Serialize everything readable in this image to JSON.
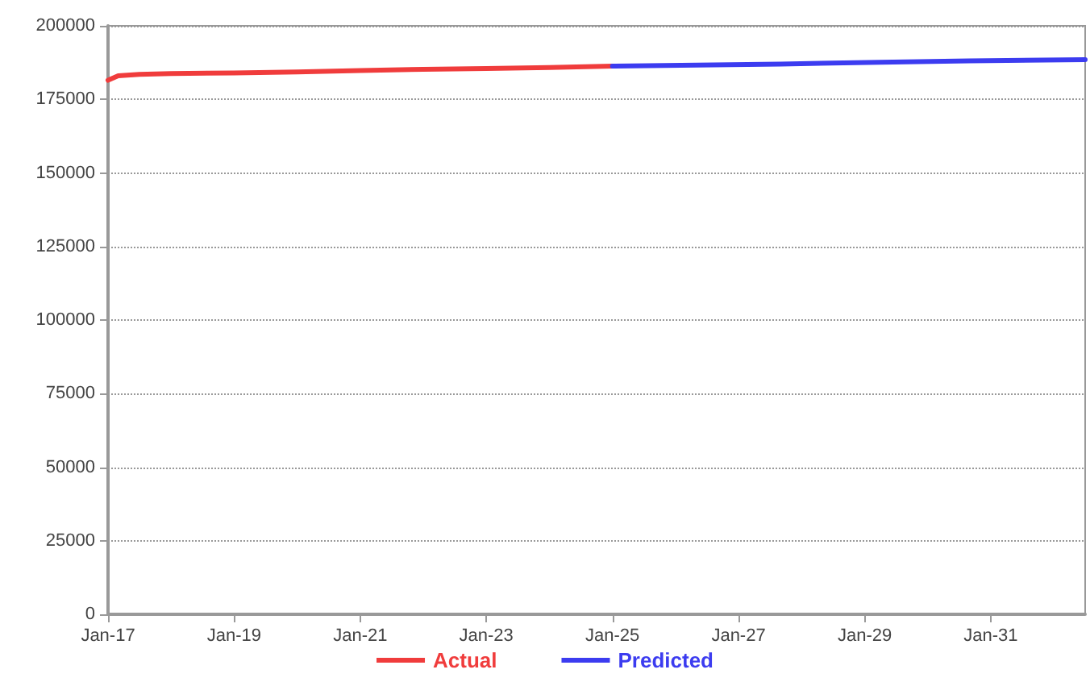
{
  "chart_data": {
    "type": "line",
    "series": [
      {
        "name": "Actual",
        "color": "#f03c3c",
        "x": [
          "2017-01",
          "2017-03",
          "2017-07",
          "2018-01",
          "2019-01",
          "2020-01",
          "2021-01",
          "2022-01",
          "2023-01",
          "2024-01",
          "2025-01"
        ],
        "values": [
          181500,
          183000,
          183500,
          183800,
          184000,
          184300,
          184800,
          185200,
          185500,
          185800,
          186300
        ]
      },
      {
        "name": "Predicted",
        "color": "#3c3cf0",
        "x": [
          "2025-01",
          "2027-09",
          "2029-04",
          "2030-09",
          "2032-07"
        ],
        "values": [
          186300,
          187000,
          187600,
          188100,
          188500
        ]
      }
    ],
    "xlim": [
      "2017-01",
      "2032-07"
    ],
    "xticks": [
      {
        "value": "2017-01",
        "label": "Jan-17"
      },
      {
        "value": "2019-01",
        "label": "Jan-19"
      },
      {
        "value": "2021-01",
        "label": "Jan-21"
      },
      {
        "value": "2023-01",
        "label": "Jan-23"
      },
      {
        "value": "2025-01",
        "label": "Jan-25"
      },
      {
        "value": "2027-01",
        "label": "Jan-27"
      },
      {
        "value": "2029-01",
        "label": "Jan-29"
      },
      {
        "value": "2031-01",
        "label": "Jan-31"
      }
    ],
    "ylim": [
      0,
      200000
    ],
    "yticks": [
      0,
      25000,
      50000,
      75000,
      100000,
      125000,
      150000,
      175000,
      200000
    ],
    "grid": "y",
    "legend": "bottom",
    "marker": "none",
    "line_style": "solid"
  }
}
